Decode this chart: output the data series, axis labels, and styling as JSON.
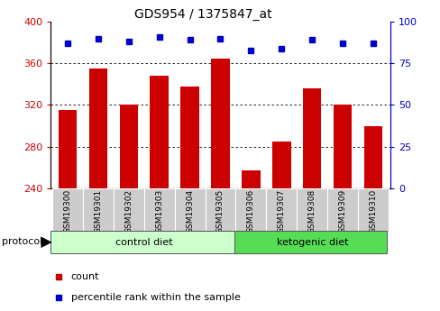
{
  "title": "GDS954 / 1375847_at",
  "samples": [
    "GSM19300",
    "GSM19301",
    "GSM19302",
    "GSM19303",
    "GSM19304",
    "GSM19305",
    "GSM19306",
    "GSM19307",
    "GSM19308",
    "GSM19309",
    "GSM19310"
  ],
  "counts": [
    315,
    355,
    320,
    348,
    338,
    365,
    257,
    285,
    336,
    320,
    300
  ],
  "percentiles": [
    87,
    90,
    88,
    91,
    89,
    90,
    83,
    84,
    89,
    87,
    87
  ],
  "bar_color": "#cc0000",
  "dot_color": "#0000cc",
  "ylim_left": [
    240,
    400
  ],
  "ylim_right": [
    0,
    100
  ],
  "yticks_left": [
    240,
    280,
    320,
    360,
    400
  ],
  "yticks_right": [
    0,
    25,
    50,
    75,
    100
  ],
  "grid_values": [
    280,
    320,
    360
  ],
  "ctrl_n": 6,
  "keto_n": 5,
  "control_label": "control diet",
  "ketogenic_label": "ketogenic diet",
  "protocol_label": "protocol",
  "legend_count": "count",
  "legend_percentile": "percentile rank within the sample",
  "control_color": "#ccffcc",
  "ketogenic_color": "#55dd55",
  "tick_bg_color": "#cccccc",
  "background_color": "#ffffff"
}
